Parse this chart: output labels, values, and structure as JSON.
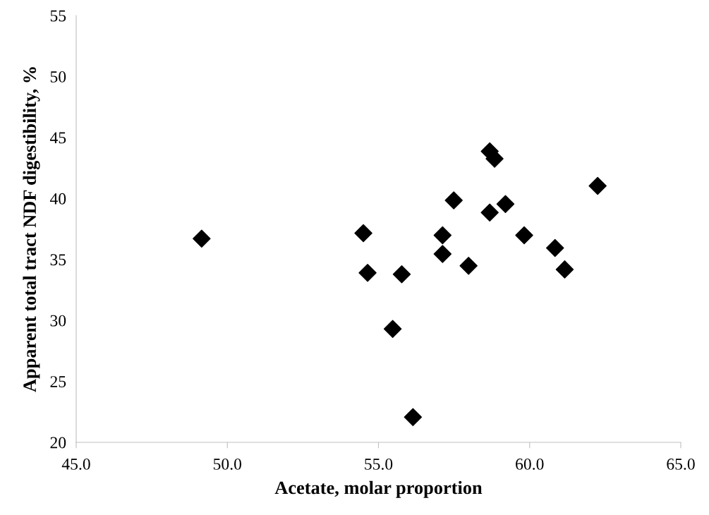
{
  "chart_data": {
    "type": "scatter",
    "xlabel": "Acetate, molar proportion",
    "ylabel": "Apparent total tract NDF digestibility, %",
    "x": [
      49.15,
      54.5,
      54.64,
      55.77,
      55.47,
      56.14,
      57.12,
      57.12,
      57.49,
      57.98,
      58.68,
      58.68,
      58.84,
      59.2,
      59.82,
      60.84,
      61.16,
      62.25
    ],
    "series": [
      {
        "color": "#000000",
        "values": [
          36.7,
          37.15,
          33.9,
          33.78,
          29.3,
          22.07,
          36.98,
          35.45,
          39.84,
          34.48,
          43.86,
          38.84,
          43.26,
          39.54,
          36.98,
          35.94,
          34.18,
          41.03
        ]
      }
    ],
    "xlim": [
      45,
      65
    ],
    "ylim": [
      20,
      55
    ],
    "xticks": [
      {
        "value": 45,
        "label": "45.0"
      },
      {
        "value": 50,
        "label": "50.0"
      },
      {
        "value": 55,
        "label": "55.0"
      },
      {
        "value": 60,
        "label": "60.0"
      },
      {
        "value": 65,
        "label": "65.0"
      }
    ],
    "yticks": [
      20,
      25,
      30,
      35,
      40,
      45,
      50,
      55
    ],
    "marker": "diamond",
    "grid": false,
    "legend": false
  }
}
